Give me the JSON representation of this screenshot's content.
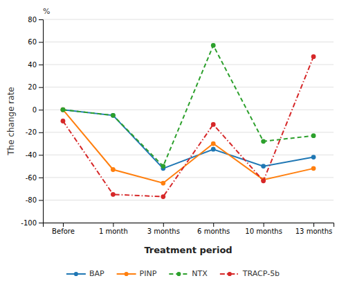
{
  "chart_data": {
    "type": "line",
    "categories": [
      "Before",
      "1 month",
      "3 months",
      "6 months",
      "10 months",
      "13 months"
    ],
    "series": [
      {
        "name": "BAP",
        "values": [
          0,
          -5,
          -52,
          -35,
          -50,
          -42
        ],
        "line_style": "solid",
        "marker": "circle"
      },
      {
        "name": "PINP",
        "values": [
          0,
          -53,
          -65,
          -30,
          -62,
          -52
        ],
        "line_style": "solid",
        "marker": "circle"
      },
      {
        "name": "NTX",
        "values": [
          0,
          -5,
          -50,
          57,
          -28,
          -23
        ],
        "line_style": "dashed",
        "marker": "circle"
      },
      {
        "name": "TRACP-5b",
        "values": [
          -10,
          -75,
          -77,
          -13,
          -63,
          47
        ],
        "line_style": "dashdot",
        "marker": "circle"
      }
    ],
    "xlabel": "Treatment period",
    "ylabel": "The change rate",
    "annotations": [
      {
        "text": "%"
      }
    ],
    "ylim": [
      -100,
      80
    ],
    "yticks": [
      -100,
      -80,
      -60,
      -40,
      -20,
      0,
      20,
      40,
      60,
      80
    ],
    "grid": true,
    "legend": "bottom"
  }
}
